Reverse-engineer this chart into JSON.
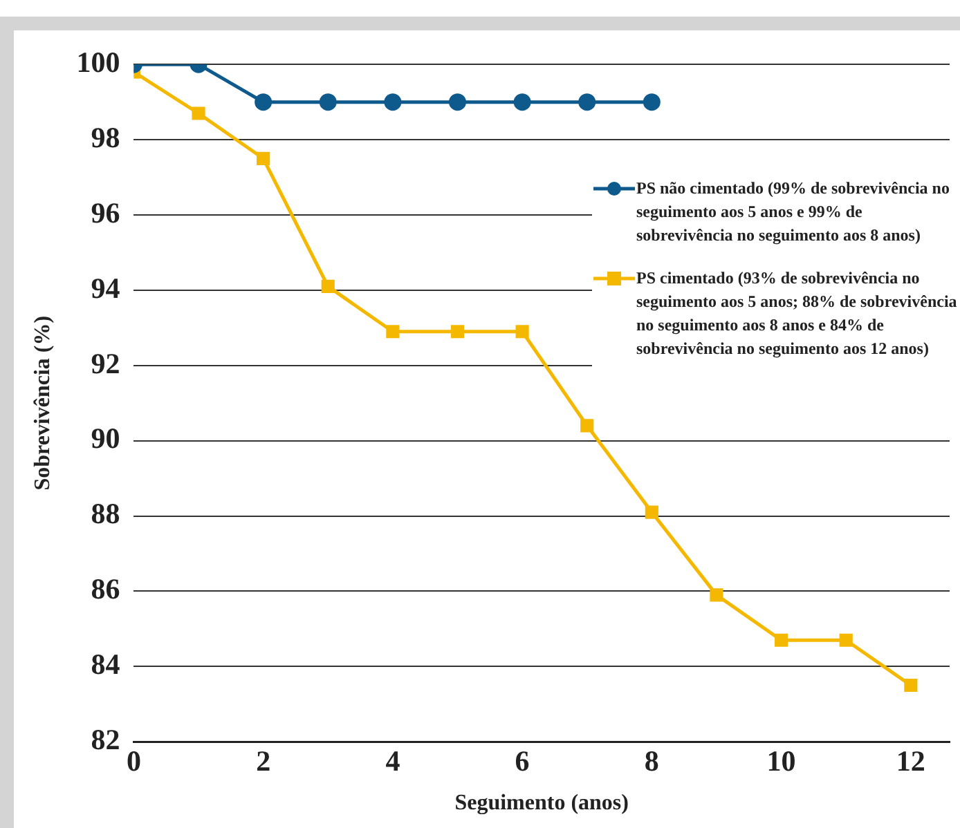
{
  "chart_data": {
    "type": "line",
    "xlabel": "Seguimento (anos)",
    "ylabel": "Sobrevivência (%)",
    "x": [
      0,
      1,
      2,
      3,
      4,
      5,
      6,
      7,
      8,
      9,
      10,
      11,
      12
    ],
    "xlim": [
      0,
      12.6
    ],
    "xticks": [
      0,
      2,
      4,
      6,
      8,
      10,
      12
    ],
    "ylim": [
      82,
      100
    ],
    "yticks": [
      82,
      84,
      86,
      88,
      90,
      92,
      94,
      96,
      98,
      100
    ],
    "grid": "y",
    "legend": "right",
    "line_style": "solid",
    "series": [
      {
        "name": "PS não cimentado (99% de sobrevivência no seguimento aos 5 anos e 99% de sobrevivência no seguimento aos 8 anos)",
        "color": "#0f5a8c",
        "marker": "circle",
        "values": [
          100,
          100,
          99,
          99,
          99,
          99,
          99,
          99,
          99,
          null,
          null,
          null,
          null
        ]
      },
      {
        "name": "PS cimentado (93% de sobrevivência no seguimento aos 5 anos; 88% de sobrevivência no seguimento aos 8 anos e 84% de sobrevivência no seguimento aos 12 anos)",
        "color": "#f5b800",
        "marker": "square",
        "values": [
          99.8,
          98.7,
          97.5,
          94.1,
          92.9,
          92.9,
          92.9,
          90.4,
          88.1,
          85.9,
          84.7,
          84.7,
          83.5
        ]
      }
    ]
  }
}
